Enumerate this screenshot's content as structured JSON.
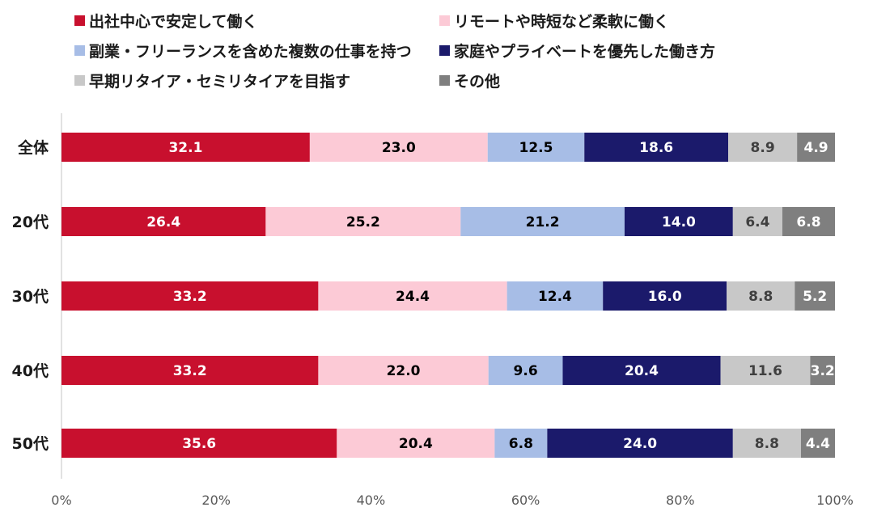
{
  "chart_data": {
    "type": "bar",
    "orientation": "horizontal",
    "stacked": true,
    "percent_stacked": true,
    "title": "",
    "xlabel": "",
    "ylabel": "",
    "xlim": [
      0,
      100
    ],
    "x_ticks": [
      "0%",
      "20%",
      "40%",
      "60%",
      "80%",
      "100%"
    ],
    "legend_position": "top",
    "categories": [
      "全体",
      "20代",
      "30代",
      "40代",
      "50代"
    ],
    "series": [
      {
        "name": "出社中心で安定して働く",
        "color": "#c8102e",
        "label_color": "#ffffff",
        "values": [
          32.1,
          26.4,
          33.2,
          33.2,
          35.6
        ]
      },
      {
        "name": "リモートや時短など柔軟に働く",
        "color": "#fccad6",
        "label_color": "#000000",
        "values": [
          23.0,
          25.2,
          24.4,
          22.0,
          20.4
        ]
      },
      {
        "name": "副業・フリーランスを含めた複数の仕事を持つ",
        "color": "#a7bde6",
        "label_color": "#000000",
        "values": [
          12.5,
          21.2,
          12.4,
          9.6,
          6.8
        ]
      },
      {
        "name": "家庭やプライベートを優先した働き方",
        "color": "#1b1a6b",
        "label_color": "#ffffff",
        "values": [
          18.6,
          14.0,
          16.0,
          20.4,
          24.0
        ]
      },
      {
        "name": "早期リタイア・セミリタイアを目指す",
        "color": "#c8c8c8",
        "label_color": "#404040",
        "values": [
          8.9,
          6.4,
          8.8,
          11.6,
          8.8
        ]
      },
      {
        "name": "その他",
        "color": "#7f7f7f",
        "label_color": "#ffffff",
        "values": [
          4.9,
          6.8,
          5.2,
          3.2,
          4.4
        ]
      }
    ]
  }
}
